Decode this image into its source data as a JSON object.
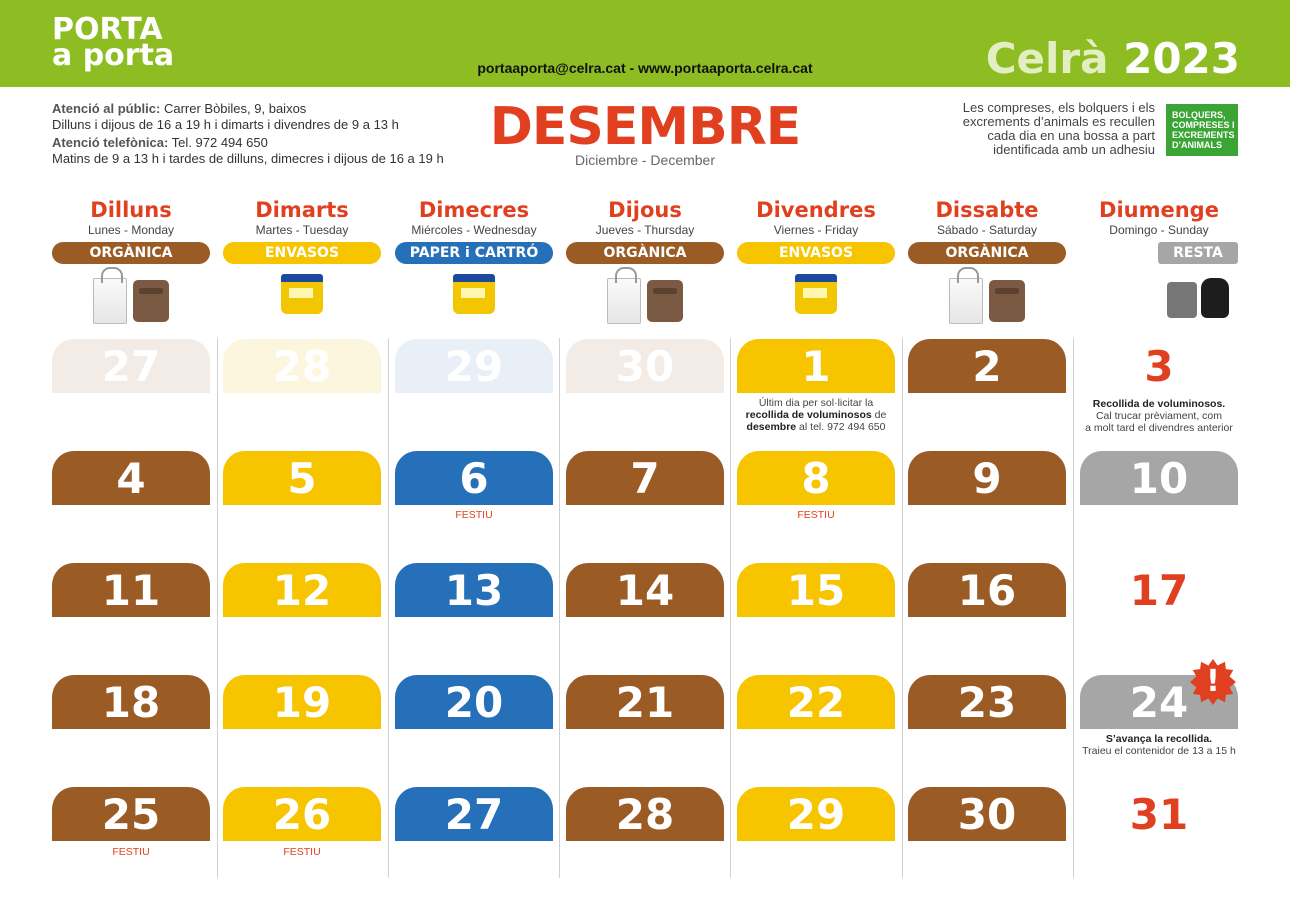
{
  "header": {
    "logo_line1": "PORTA",
    "logo_line2": "a porta",
    "contact_web": "portaaporta@celra.cat - www.portaaporta.celra.cat",
    "city": "Celrà",
    "year": "2023"
  },
  "info_left": {
    "public_label": "Atenció al públic:",
    "public_address": " Carrer Bòbiles, 9, baixos",
    "public_hours": "Dilluns i dijous de 16 a 19 h i dimarts i divendres de 9 a 13 h",
    "phone_label": "Atenció telefònica:",
    "phone_value": " Tel. 972 494 650",
    "phone_hours": "Matins de 9 a 13 h i tardes de dilluns, dimecres i dijous de 16 a 19 h"
  },
  "month": {
    "title": "DESEMBRE",
    "subtitle": "Diciembre - December"
  },
  "info_right": {
    "line1": "Les compreses, els bolquers i els",
    "line2": "excrements d’animals es recullen",
    "line3": "cada dia en una bossa a part",
    "line4": "identificada amb un adhesiu",
    "badge_line1": "BOLQUERS,",
    "badge_line2": "COMPRESES I",
    "badge_line3": "EXCREMENTS",
    "badge_line4": "D’ANIMALS"
  },
  "colors": {
    "green": "#8dbd22",
    "brown": "#9b5b24",
    "yellow": "#f7c400",
    "blue": "#2670b9",
    "grey": "#a6a6a6",
    "red": "#e0401f"
  },
  "columns": [
    {
      "day": "Dilluns",
      "sub": "Lunes - Monday",
      "waste": "ORGÀNICA",
      "type": "organica",
      "icons": [
        "bag-icon",
        "brown-bin-icon"
      ]
    },
    {
      "day": "Dimarts",
      "sub": "Martes - Tuesday",
      "waste": "ENVASOS",
      "type": "envasos",
      "icons": [
        "yellow-bin-icon"
      ]
    },
    {
      "day": "Dimecres",
      "sub": "Miércoles - Wednesday",
      "waste": "PAPER i CARTRÓ",
      "type": "paper",
      "icons": [
        "yellow-bin-icon"
      ]
    },
    {
      "day": "Dijous",
      "sub": "Jueves - Thursday",
      "waste": "ORGÀNICA",
      "type": "organica",
      "icons": [
        "bag-icon",
        "brown-bin-icon"
      ]
    },
    {
      "day": "Divendres",
      "sub": "Viernes - Friday",
      "waste": "ENVASOS",
      "type": "envasos",
      "icons": [
        "yellow-bin-icon"
      ]
    },
    {
      "day": "Dissabte",
      "sub": "Sábado - Saturday",
      "waste": "ORGÀNICA",
      "type": "organica",
      "icons": [
        "bag-icon",
        "brown-bin-icon"
      ]
    },
    {
      "day": "Diumenge",
      "sub": "Domingo - Sunday",
      "waste": "RESTA",
      "type": "resta",
      "icons": [
        "grey-bin-icon",
        "black-bag-icon"
      ]
    }
  ],
  "weeks": [
    [
      {
        "n": "27",
        "style": "faded-brown"
      },
      {
        "n": "28",
        "style": "faded-yellow"
      },
      {
        "n": "29",
        "style": "faded-blue"
      },
      {
        "n": "30",
        "style": "faded-brown"
      },
      {
        "n": "1",
        "style": "yellow"
      },
      {
        "n": "2",
        "style": "brown"
      },
      {
        "n": "3",
        "style": "plain"
      }
    ],
    [
      {
        "n": "4",
        "style": "brown"
      },
      {
        "n": "5",
        "style": "yellow"
      },
      {
        "n": "6",
        "style": "blue"
      },
      {
        "n": "7",
        "style": "brown"
      },
      {
        "n": "8",
        "style": "yellow"
      },
      {
        "n": "9",
        "style": "brown"
      },
      {
        "n": "10",
        "style": "grey"
      }
    ],
    [
      {
        "n": "11",
        "style": "brown"
      },
      {
        "n": "12",
        "style": "yellow"
      },
      {
        "n": "13",
        "style": "blue"
      },
      {
        "n": "14",
        "style": "brown"
      },
      {
        "n": "15",
        "style": "yellow"
      },
      {
        "n": "16",
        "style": "brown"
      },
      {
        "n": "17",
        "style": "plain"
      }
    ],
    [
      {
        "n": "18",
        "style": "brown"
      },
      {
        "n": "19",
        "style": "yellow"
      },
      {
        "n": "20",
        "style": "blue"
      },
      {
        "n": "21",
        "style": "brown"
      },
      {
        "n": "22",
        "style": "yellow"
      },
      {
        "n": "23",
        "style": "brown"
      },
      {
        "n": "24",
        "style": "grey"
      }
    ],
    [
      {
        "n": "25",
        "style": "brown"
      },
      {
        "n": "26",
        "style": "yellow"
      },
      {
        "n": "27",
        "style": "blue"
      },
      {
        "n": "28",
        "style": "brown"
      },
      {
        "n": "29",
        "style": "yellow"
      },
      {
        "n": "30",
        "style": "brown"
      },
      {
        "n": "31",
        "style": "plain"
      }
    ]
  ],
  "festiu_label": "FESTIU",
  "notes": {
    "dec1_l1": "Últim dia per sol·licitar la",
    "dec1_b1": "recollida de voluminosos",
    "dec1_t1": " de",
    "dec1_b2": "desembre",
    "dec1_t2": " al tel. 972 494 650",
    "dec3_b": "Recollida de voluminosos.",
    "dec3_l2": "Cal trucar prèviament, com",
    "dec3_l3": "a molt tard el divendres anterior",
    "dec24_b": "S’avança la recollida.",
    "dec24_l2": "Traieu el contenidor de 13 a 15 h",
    "burst": "!"
  }
}
